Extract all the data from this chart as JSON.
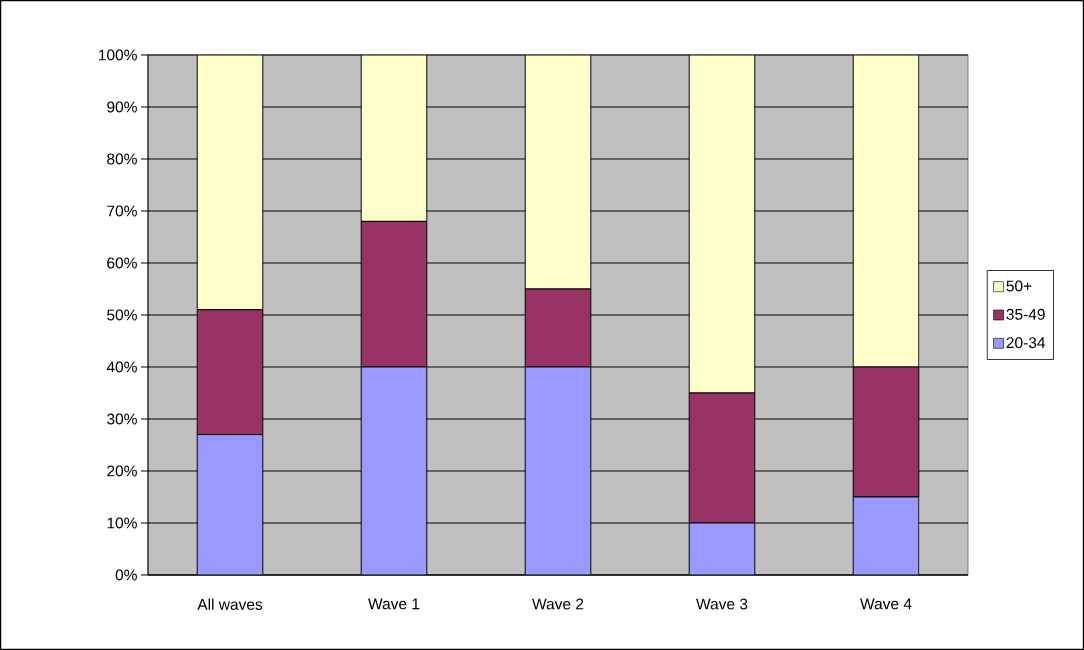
{
  "chart_data": {
    "type": "bar",
    "stacked": true,
    "categories": [
      "All waves",
      "Wave 1",
      "Wave 2",
      "Wave 3",
      "Wave 4"
    ],
    "series": [
      {
        "name": "20-34",
        "color": "#9999ff",
        "values": [
          27,
          40,
          40,
          10,
          15
        ]
      },
      {
        "name": "35-49",
        "color": "#993366",
        "values": [
          24,
          28,
          15,
          25,
          25
        ]
      },
      {
        "name": "50+",
        "color": "#ffffcc",
        "values": [
          49,
          32,
          45,
          65,
          60
        ]
      }
    ],
    "ylim": [
      0,
      100
    ],
    "yticks": [
      {
        "value": 0,
        "label": "0%"
      },
      {
        "value": 10,
        "label": "10%"
      },
      {
        "value": 20,
        "label": "20%"
      },
      {
        "value": 30,
        "label": "30%"
      },
      {
        "value": 40,
        "label": "40%"
      },
      {
        "value": 50,
        "label": "50%"
      },
      {
        "value": 60,
        "label": "60%"
      },
      {
        "value": 70,
        "label": "70%"
      },
      {
        "value": 80,
        "label": "80%"
      },
      {
        "value": 90,
        "label": "90%"
      },
      {
        "value": 100,
        "label": "100%"
      }
    ],
    "grid": "y",
    "legend": "right"
  }
}
